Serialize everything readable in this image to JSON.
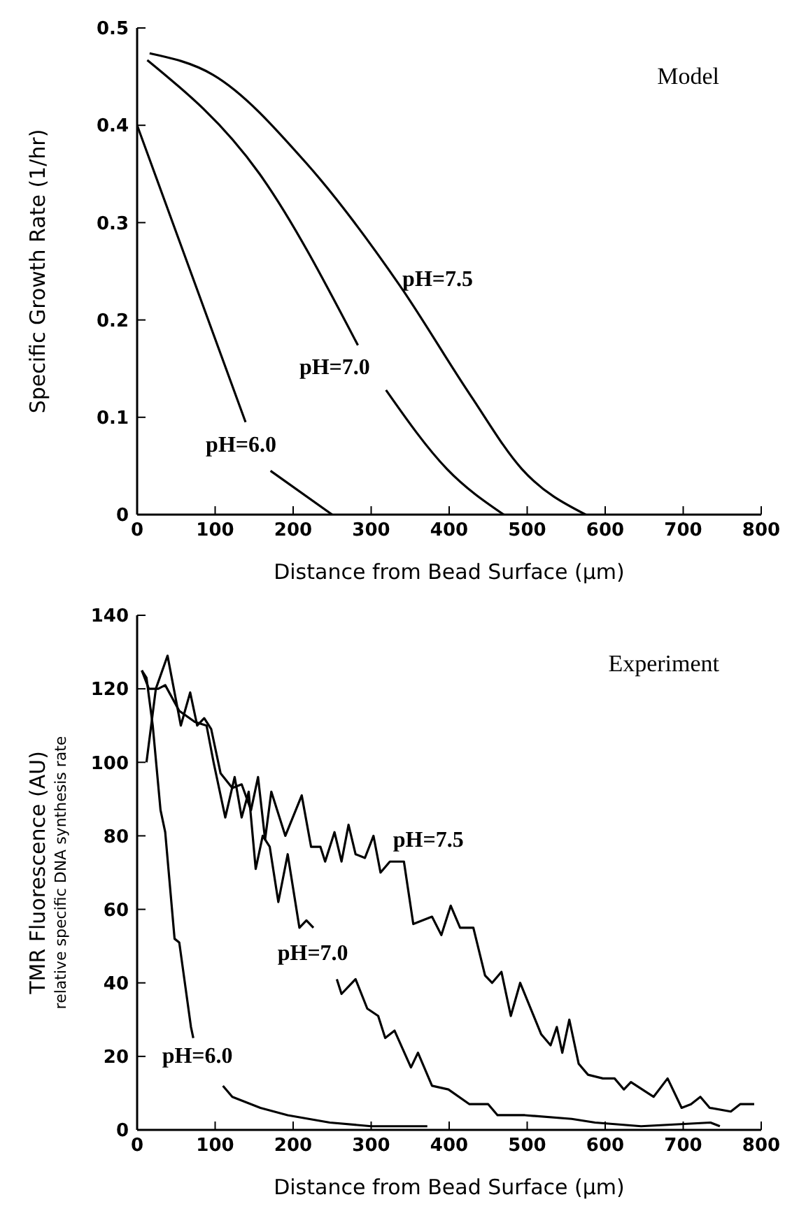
{
  "chart_data": [
    {
      "type": "line",
      "xlabel": "Distance from Bead Surface (µm)",
      "ylabel": "Specific Growth Rate (1/hr)",
      "xlim": [
        0,
        800
      ],
      "xticks": [
        0,
        100,
        200,
        300,
        400,
        500,
        600,
        700,
        800
      ],
      "ylim": [
        0,
        0.5
      ],
      "yticks": [
        0,
        0.1,
        0.2,
        0.3,
        0.4,
        0.5
      ],
      "grid": false,
      "marker": "none",
      "line_style": "solid",
      "annotations": [
        "Model"
      ],
      "series": [
        {
          "name": "pH=7.5",
          "color": "#000000",
          "x": [
            16,
            97,
            217,
            337,
            427,
            493,
            575
          ],
          "values": [
            0.474,
            0.452,
            0.361,
            0.235,
            0.123,
            0.047,
            0
          ]
        },
        {
          "name": "pH=7.0",
          "color": "#000000",
          "x": [
            13,
            157,
            283,
            300,
            319,
            397,
            470
          ],
          "values": [
            0.467,
            0.35,
            0.174,
            null,
            0.128,
            0.047,
            0
          ]
        },
        {
          "name": "pH=6.0",
          "color": "#000000",
          "x": [
            0,
            139,
            155,
            171,
            250
          ],
          "values": [
            0.4,
            0.095,
            null,
            0.045,
            0
          ]
        }
      ]
    },
    {
      "type": "line",
      "xlabel": "Distance from Bead Surface (µm)",
      "ylabel": "TMR Fluorescence (AU)\nrelative specific DNA synthesis rate",
      "xlim": [
        0,
        800
      ],
      "xticks": [
        0,
        100,
        200,
        300,
        400,
        500,
        600,
        700,
        800
      ],
      "ylim": [
        0,
        140
      ],
      "yticks": [
        0,
        20,
        40,
        60,
        80,
        100,
        120,
        140
      ],
      "grid": false,
      "marker": "none",
      "line_style": "solid",
      "annotations": [
        "Experiment"
      ],
      "series": [
        {
          "name": "pH=7.5",
          "color": "#000000",
          "x": [
            12,
            24,
            39,
            56,
            68,
            77,
            86,
            95,
            107,
            122,
            134,
            146,
            155,
            164,
            172,
            190,
            211,
            223,
            235,
            241,
            253,
            262,
            271,
            280,
            292,
            303,
            312,
            324,
            342,
            354,
            366,
            378,
            390,
            402,
            414,
            431,
            446,
            455,
            467,
            479,
            491,
            518,
            530,
            538,
            545,
            554,
            566,
            578,
            597,
            612,
            624,
            633,
            662,
            680,
            698,
            710,
            722,
            734,
            761,
            773,
            791
          ],
          "values": [
            100,
            120,
            129,
            110,
            119,
            110,
            112,
            109,
            97,
            93,
            94,
            87,
            96,
            79,
            92,
            80,
            91,
            77,
            77,
            73,
            81,
            73,
            83,
            75,
            74,
            80,
            70,
            73,
            73,
            56,
            57,
            58,
            53,
            61,
            55,
            55,
            42,
            40,
            43,
            31,
            40,
            26,
            23,
            28,
            21,
            30,
            18,
            15,
            14,
            14,
            11,
            13,
            9,
            14,
            6,
            7,
            9,
            6,
            5,
            7,
            7
          ]
        },
        {
          "name": "pH=7.0",
          "color": "#000000",
          "x": [
            6,
            15,
            27,
            36,
            54,
            74,
            89,
            98,
            113,
            125,
            134,
            143,
            152,
            161,
            170,
            181,
            193,
            208,
            217,
            226,
            240,
            256,
            262,
            280,
            295,
            309,
            318,
            330,
            351,
            360,
            378,
            399,
            426,
            438,
            450,
            462,
            497,
            557,
            587,
            646,
            735,
            747
          ],
          "values": [
            125,
            120,
            120,
            121,
            114,
            111,
            110,
            100,
            85,
            96,
            85,
            92,
            71,
            80,
            77,
            62,
            75,
            55,
            57,
            55,
            null,
            41,
            37,
            41,
            33,
            31,
            25,
            27,
            17,
            21,
            12,
            11,
            7,
            7,
            7,
            4,
            4,
            3,
            2,
            1,
            2,
            1
          ]
        },
        {
          "name": "pH=6.0",
          "color": "#000000",
          "x": [
            6,
            12,
            20,
            30,
            36,
            48,
            54,
            69,
            72,
            90,
            110,
            122,
            158,
            193,
            247,
            300,
            372
          ],
          "values": [
            125,
            123,
            110,
            87,
            81,
            52,
            51,
            28,
            25,
            null,
            12,
            9,
            6,
            4,
            2,
            1,
            1
          ]
        }
      ]
    }
  ]
}
